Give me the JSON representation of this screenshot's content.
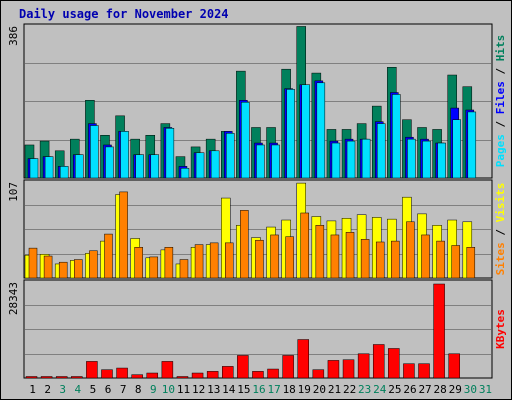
{
  "title": "Daily usage for November 2024",
  "colors": {
    "hits": "#00805c",
    "files": "#0000ff",
    "pages": "#00e0ff",
    "visits": "#ffff00",
    "sites": "#ff8000",
    "kbytes": "#ff0000",
    "weekday_label": "#000000",
    "weekend_label": "#00805c"
  },
  "chart_data": [
    {
      "type": "bar",
      "panel": "top",
      "ymax_label": "386",
      "ylim": [
        0,
        386
      ],
      "legend": [
        "Pages",
        "Files",
        "Hits"
      ],
      "categories": [
        "1",
        "2",
        "3",
        "4",
        "5",
        "6",
        "7",
        "8",
        "9",
        "10",
        "11",
        "12",
        "13",
        "14",
        "15",
        "16",
        "17",
        "18",
        "19",
        "20",
        "21",
        "22",
        "23",
        "24",
        "25",
        "26",
        "27",
        "28",
        "29",
        "30",
        "31"
      ],
      "series": [
        {
          "name": "Hits",
          "values": [
            85,
            95,
            70,
            100,
            200,
            110,
            160,
            100,
            110,
            140,
            55,
            80,
            100,
            120,
            275,
            130,
            130,
            280,
            390,
            270,
            125,
            125,
            140,
            185,
            285,
            150,
            130,
            125,
            265,
            235,
            0
          ]
        },
        {
          "name": "Files",
          "values": [
            50,
            55,
            30,
            60,
            140,
            85,
            120,
            60,
            60,
            130,
            30,
            65,
            70,
            120,
            200,
            90,
            90,
            230,
            240,
            250,
            95,
            100,
            100,
            145,
            220,
            105,
            100,
            90,
            180,
            175,
            0
          ]
        },
        {
          "name": "Pages",
          "values": [
            50,
            55,
            30,
            60,
            135,
            80,
            120,
            60,
            60,
            128,
            25,
            65,
            70,
            115,
            195,
            85,
            85,
            228,
            240,
            245,
            90,
            95,
            100,
            140,
            215,
            100,
            95,
            90,
            150,
            170,
            0
          ]
        }
      ]
    },
    {
      "type": "bar",
      "panel": "middle",
      "ymax_label": "107",
      "ylim": [
        0,
        107
      ],
      "legend": [
        "Sites",
        "Visits"
      ],
      "categories": [
        "1",
        "2",
        "3",
        "4",
        "5",
        "6",
        "7",
        "8",
        "9",
        "10",
        "11",
        "12",
        "13",
        "14",
        "15",
        "16",
        "17",
        "18",
        "19",
        "20",
        "21",
        "22",
        "23",
        "24",
        "25",
        "26",
        "27",
        "28",
        "29",
        "30",
        "31"
      ],
      "series": [
        {
          "name": "Visits",
          "values": [
            26,
            27,
            16,
            20,
            28,
            42,
            95,
            45,
            23,
            32,
            16,
            35,
            38,
            91,
            60,
            46,
            58,
            66,
            108,
            70,
            65,
            68,
            72,
            69,
            67,
            92,
            73,
            60,
            66,
            64,
            0
          ]
        },
        {
          "name": "Sites",
          "values": [
            34,
            25,
            18,
            21,
            31,
            50,
            98,
            35,
            24,
            35,
            21,
            38,
            40,
            40,
            77,
            43,
            49,
            47,
            74,
            60,
            49,
            52,
            44,
            41,
            42,
            64,
            49,
            42,
            37,
            35,
            0
          ]
        }
      ]
    },
    {
      "type": "bar",
      "panel": "bottom",
      "ymax_label": "28343",
      "ylim": [
        0,
        28343
      ],
      "legend": [
        "KBytes"
      ],
      "categories": [
        "1",
        "2",
        "3",
        "4",
        "5",
        "6",
        "7",
        "8",
        "9",
        "10",
        "11",
        "12",
        "13",
        "14",
        "15",
        "16",
        "17",
        "18",
        "19",
        "20",
        "21",
        "22",
        "23",
        "24",
        "25",
        "26",
        "27",
        "28",
        "29",
        "30",
        "31"
      ],
      "series": [
        {
          "name": "KBytes",
          "values": [
            200,
            200,
            200,
            200,
            5000,
            2500,
            3000,
            1000,
            1500,
            5000,
            200,
            1500,
            2000,
            3500,
            6800,
            2000,
            2700,
            6800,
            11600,
            2500,
            5300,
            5500,
            7300,
            10100,
            8900,
            4300,
            4300,
            28343,
            7300,
            0,
            0
          ]
        }
      ]
    }
  ],
  "day_labels": [
    {
      "label": "1",
      "weekend": false
    },
    {
      "label": "2",
      "weekend": false
    },
    {
      "label": "3",
      "weekend": true
    },
    {
      "label": "4",
      "weekend": true
    },
    {
      "label": "5",
      "weekend": false
    },
    {
      "label": "6",
      "weekend": false
    },
    {
      "label": "7",
      "weekend": false
    },
    {
      "label": "8",
      "weekend": false
    },
    {
      "label": "9",
      "weekend": true
    },
    {
      "label": "10",
      "weekend": true
    },
    {
      "label": "11",
      "weekend": false
    },
    {
      "label": "12",
      "weekend": false
    },
    {
      "label": "13",
      "weekend": false
    },
    {
      "label": "14",
      "weekend": false
    },
    {
      "label": "15",
      "weekend": false
    },
    {
      "label": "16",
      "weekend": true
    },
    {
      "label": "17",
      "weekend": true
    },
    {
      "label": "18",
      "weekend": false
    },
    {
      "label": "19",
      "weekend": false
    },
    {
      "label": "20",
      "weekend": false
    },
    {
      "label": "21",
      "weekend": false
    },
    {
      "label": "22",
      "weekend": false
    },
    {
      "label": "23",
      "weekend": true
    },
    {
      "label": "24",
      "weekend": true
    },
    {
      "label": "25",
      "weekend": false
    },
    {
      "label": "26",
      "weekend": false
    },
    {
      "label": "27",
      "weekend": false
    },
    {
      "label": "28",
      "weekend": false
    },
    {
      "label": "29",
      "weekend": false
    },
    {
      "label": "30",
      "weekend": true
    },
    {
      "label": "31",
      "weekend": true
    }
  ]
}
